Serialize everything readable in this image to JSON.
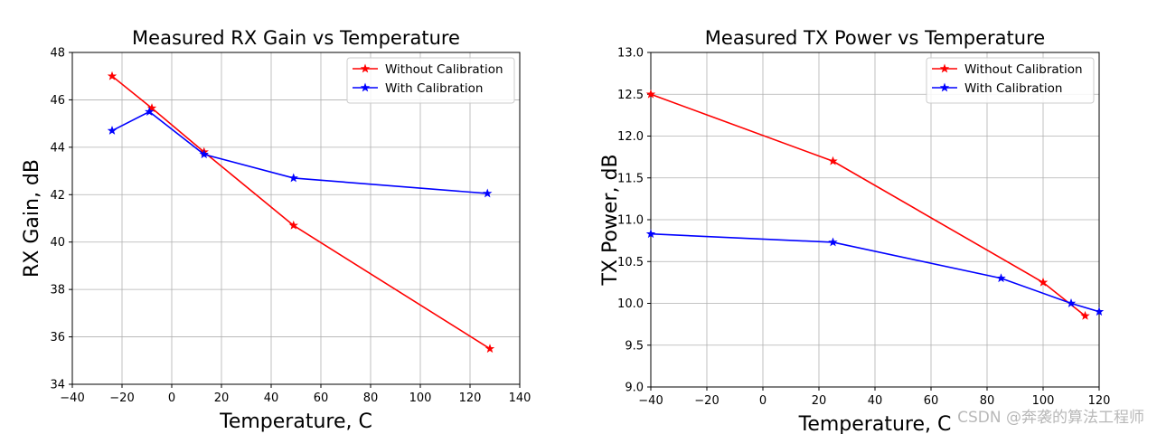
{
  "chart_data": [
    {
      "type": "line",
      "title": "Measured RX Gain vs Temperature",
      "xlabel": "Temperature, C",
      "ylabel": "RX Gain, dB",
      "xlim": [
        -40,
        140
      ],
      "ylim": [
        34,
        48
      ],
      "xticks": [
        -40,
        -20,
        0,
        20,
        40,
        60,
        80,
        100,
        120,
        140
      ],
      "yticks": [
        34,
        36,
        38,
        40,
        42,
        44,
        46,
        48
      ],
      "xtick_labels": [
        "−40",
        "−20",
        "0",
        "20",
        "40",
        "60",
        "80",
        "100",
        "120",
        "140"
      ],
      "ytick_labels": [
        "34",
        "36",
        "38",
        "40",
        "42",
        "44",
        "46",
        "48"
      ],
      "grid": true,
      "legend_position": "top-right",
      "series": [
        {
          "name": "Without Calibration",
          "color": "#ff0000",
          "marker": "star",
          "x": [
            -24,
            -8,
            13,
            49,
            128
          ],
          "y": [
            47.0,
            45.65,
            43.8,
            40.7,
            35.5
          ]
        },
        {
          "name": "With Calibration",
          "color": "#0000ff",
          "marker": "star",
          "x": [
            -24,
            -9,
            13,
            49,
            127
          ],
          "y": [
            44.7,
            45.5,
            43.7,
            42.7,
            42.05
          ]
        }
      ]
    },
    {
      "type": "line",
      "title": "Measured TX Power vs Temperature",
      "xlabel": "Temperature, C",
      "ylabel": "TX Power, dB",
      "xlim": [
        -40,
        120
      ],
      "ylim": [
        9.0,
        13.0
      ],
      "xticks": [
        -40,
        -20,
        0,
        20,
        40,
        60,
        80,
        100,
        120
      ],
      "yticks": [
        9.0,
        9.5,
        10.0,
        10.5,
        11.0,
        11.5,
        12.0,
        12.5,
        13.0
      ],
      "xtick_labels": [
        "−40",
        "−20",
        "0",
        "20",
        "40",
        "60",
        "80",
        "100",
        "120"
      ],
      "ytick_labels": [
        "9.0",
        "9.5",
        "10.0",
        "10.5",
        "11.0",
        "11.5",
        "12.0",
        "12.5",
        "13.0"
      ],
      "grid": true,
      "legend_position": "top-right",
      "series": [
        {
          "name": "Without Calibration",
          "color": "#ff0000",
          "marker": "star",
          "x": [
            -40,
            25,
            100,
            115
          ],
          "y": [
            12.5,
            11.7,
            10.25,
            9.85
          ]
        },
        {
          "name": "With Calibration",
          "color": "#0000ff",
          "marker": "star",
          "x": [
            -40,
            25,
            85,
            110,
            120
          ],
          "y": [
            10.83,
            10.73,
            10.3,
            10.0,
            9.9
          ]
        }
      ]
    }
  ],
  "watermark": "CSDN @奔袭的算法工程师"
}
